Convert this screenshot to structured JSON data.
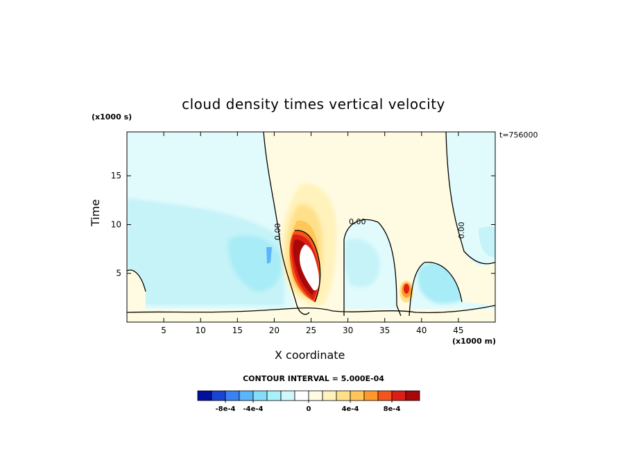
{
  "chart_data": {
    "type": "heatmap",
    "title": "cloud density times vertical velocity",
    "xlabel": "X coordinate",
    "ylabel": "Time",
    "x_unit": "(x1000 m)",
    "y_unit": "(x1000 s)",
    "time_label": "t=756000",
    "xlim": [
      0,
      50
    ],
    "ylim": [
      0,
      19.5
    ],
    "x_ticks": [
      5,
      10,
      15,
      20,
      25,
      30,
      35,
      40,
      45
    ],
    "y_ticks": [
      5,
      10,
      15
    ],
    "contour_label": "0.00",
    "contour_interval_text": "CONTOUR INTERVAL = 5.000E-04",
    "colorbar": {
      "ticks": [
        "-8e-4",
        "-4e-4",
        "0",
        "4e-4",
        "8e-4"
      ],
      "colors": [
        "#00109c",
        "#1b43d6",
        "#3a82f2",
        "#5cb4fa",
        "#82dcfa",
        "#a8f0fa",
        "#cff8fa",
        "#ffffff",
        "#fffbe2",
        "#fff2ba",
        "#ffe08a",
        "#ffc65a",
        "#ff9a2a",
        "#f5551a",
        "#dc1e14",
        "#a80808"
      ]
    },
    "features": [
      {
        "kind": "positive_max",
        "x_center": 24.5,
        "time_range": [
          3,
          9
        ],
        "peak": 0.0011
      },
      {
        "kind": "positive_small",
        "x_center": 38,
        "time_range": [
          2.5,
          4
        ],
        "peak": 0.0008
      },
      {
        "kind": "negative_region",
        "x_center": 19.5,
        "time_range": [
          3,
          8
        ],
        "peak": -0.0005
      },
      {
        "kind": "negative_region",
        "x_center": 43,
        "time_range": [
          2,
          6
        ],
        "peak": -0.0003
      }
    ]
  }
}
